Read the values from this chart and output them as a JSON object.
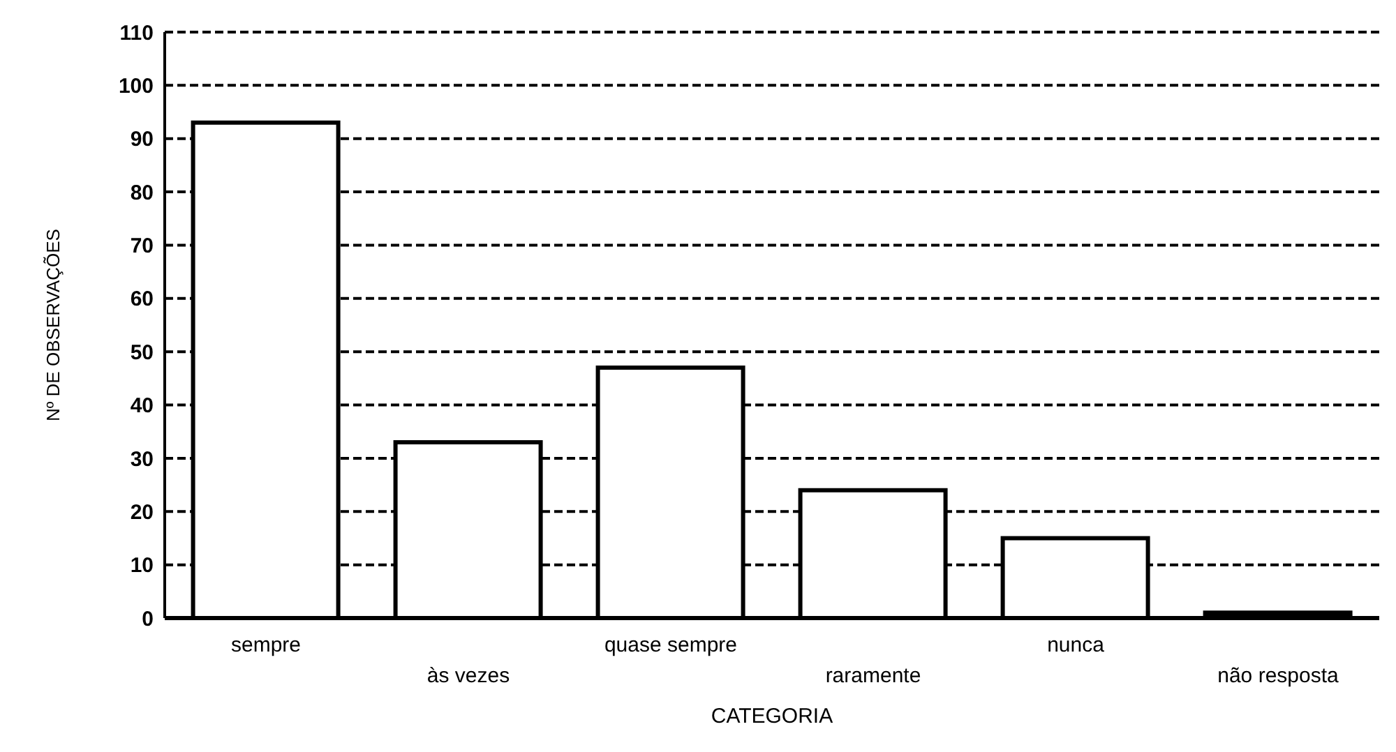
{
  "chart_data": {
    "type": "bar",
    "xlabel": "CATEGORIA",
    "ylabel": "Nº DE OBSERVAÇÕES",
    "categories": [
      "sempre",
      "às vezes",
      "quase sempre",
      "raramente",
      "nunca",
      "não resposta"
    ],
    "values": [
      93,
      33,
      47,
      24,
      15,
      1
    ],
    "colors": [
      "#ffffff",
      "#ffffff",
      "#ffffff",
      "#ffffff",
      "#ffffff",
      "#000000"
    ],
    "ylim": [
      0,
      110
    ],
    "yticks": [
      0,
      10,
      20,
      30,
      40,
      50,
      60,
      70,
      80,
      90,
      100,
      110
    ],
    "grid": "y"
  }
}
